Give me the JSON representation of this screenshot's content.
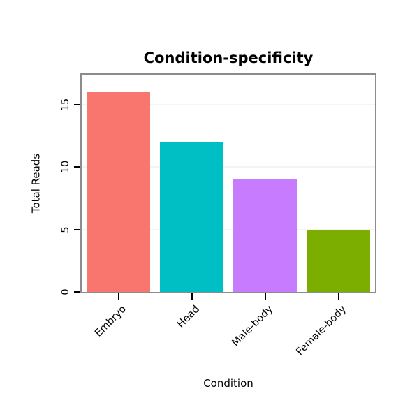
{
  "chart_data": {
    "type": "bar",
    "title": "Condition-specificity",
    "xlabel": "Condition",
    "ylabel": "Total Reads",
    "categories": [
      "Embryo",
      "Head",
      "Male-body",
      "Female-body"
    ],
    "values": [
      16,
      12,
      9,
      5
    ],
    "bar_colors": [
      "#F8766D",
      "#00BFC4",
      "#C77CFF",
      "#7CAE00"
    ],
    "yticks": [
      0,
      5,
      10,
      15
    ],
    "ylim": [
      0,
      17.4
    ],
    "legend": "none",
    "grid": "faint horizontal lines at y ticks",
    "plot_border_color": "#8c8c8c",
    "x_tick_label_rotation_deg": 45,
    "y_tick_label_rotation_deg": 90
  }
}
